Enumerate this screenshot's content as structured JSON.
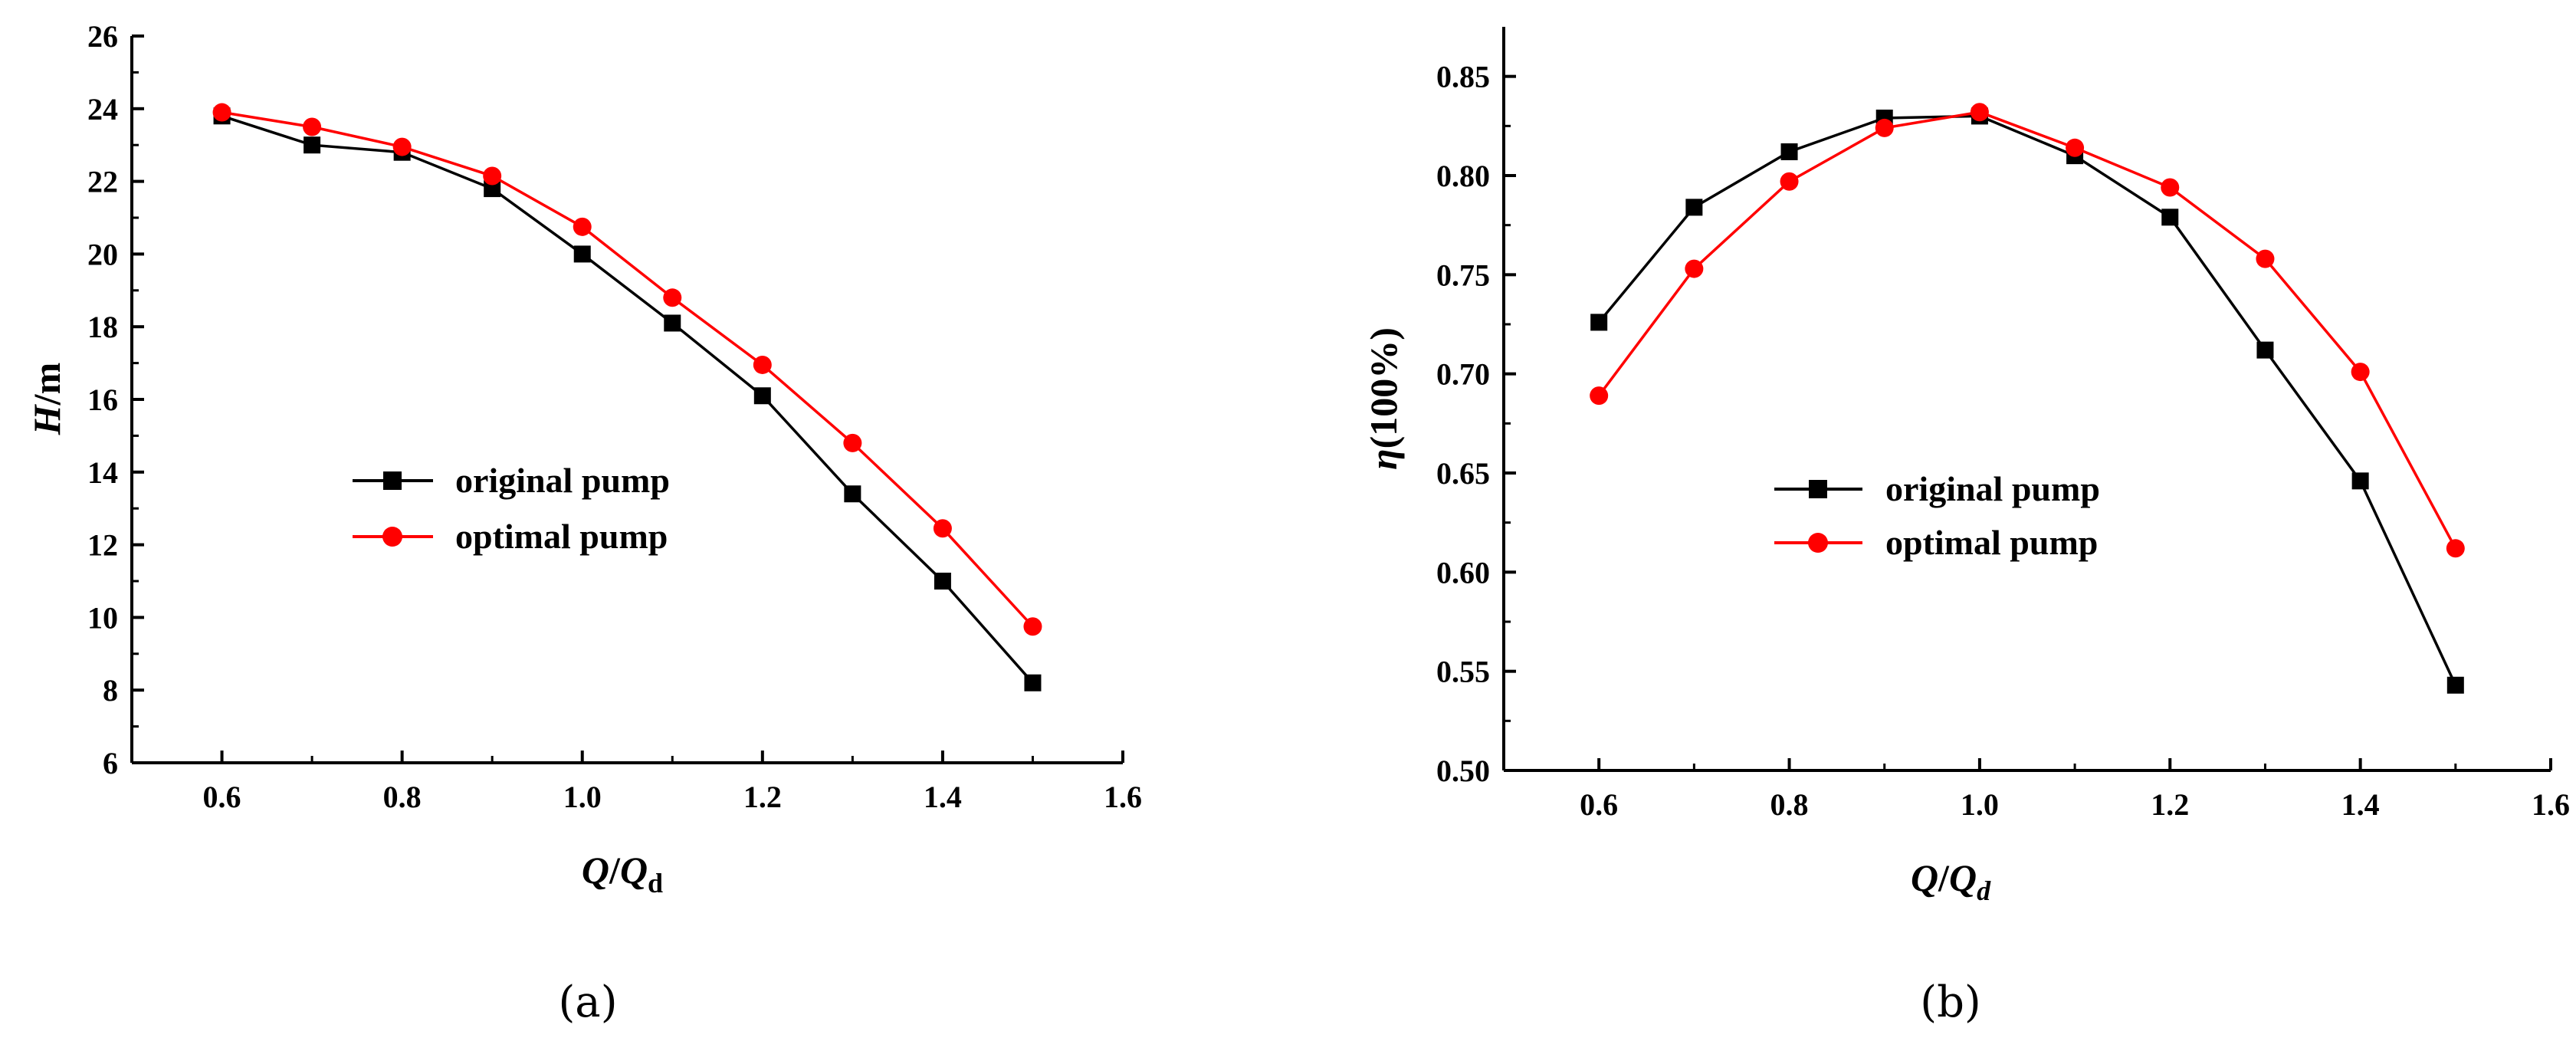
{
  "figure": {
    "panels": [
      "(a)",
      "(b)"
    ]
  },
  "chart_data": [
    {
      "type": "line",
      "panel_label": "(a)",
      "title": "",
      "xlabel": "Q/Qd",
      "xlabel_parts": {
        "q1": "Q",
        "slash": "/",
        "q2": "Q",
        "sub": "d"
      },
      "ylabel": "H/m",
      "ylabel_parts": {
        "var": "H",
        "unit": "/m"
      },
      "xlim": [
        0.5,
        1.6
      ],
      "ylim": [
        6,
        26
      ],
      "xticks": [
        0.6,
        0.8,
        1.0,
        1.2,
        1.4,
        1.6
      ],
      "xtick_labels": [
        "0.6",
        "0.8",
        "1.0",
        "1.2",
        "1.4",
        "1.6"
      ],
      "yticks": [
        6,
        8,
        10,
        12,
        14,
        16,
        18,
        20,
        22,
        24,
        26
      ],
      "ytick_labels": [
        "6",
        "8",
        "10",
        "12",
        "14",
        "16",
        "18",
        "20",
        "22",
        "24",
        "26"
      ],
      "grid": false,
      "legend_position": "center",
      "x": [
        0.6,
        0.7,
        0.8,
        0.9,
        1.0,
        1.1,
        1.2,
        1.3,
        1.4,
        1.5
      ],
      "series": [
        {
          "name": "original pump",
          "color": "#000000",
          "marker": "square",
          "values": [
            23.8,
            23.0,
            22.8,
            21.8,
            20.0,
            18.1,
            16.1,
            13.4,
            11.0,
            8.2
          ]
        },
        {
          "name": "optimal pump",
          "color": "#ff0000",
          "marker": "circle",
          "values": [
            23.9,
            23.5,
            22.95,
            22.15,
            20.75,
            18.8,
            16.95,
            14.8,
            12.45,
            9.75
          ]
        }
      ]
    },
    {
      "type": "line",
      "panel_label": "(b)",
      "title": "",
      "xlabel": "Q/Qd",
      "xlabel_parts": {
        "q1": "Q",
        "slash": "/",
        "q2": "Q",
        "sub": "d"
      },
      "ylabel": "η(100%)",
      "ylabel_parts": {
        "var": "η",
        "unit": "(100%)"
      },
      "xlim": [
        0.5,
        1.6
      ],
      "ylim": [
        0.5,
        0.875
      ],
      "xticks": [
        0.6,
        0.8,
        1.0,
        1.2,
        1.4,
        1.6
      ],
      "xtick_labels": [
        "0.6",
        "0.8",
        "1.0",
        "1.2",
        "1.4",
        "1.6"
      ],
      "yticks": [
        0.5,
        0.55,
        0.6,
        0.65,
        0.7,
        0.75,
        0.8,
        0.85
      ],
      "ytick_labels": [
        "0.50",
        "0.55",
        "0.60",
        "0.65",
        "0.70",
        "0.75",
        "0.80",
        "0.85"
      ],
      "grid": false,
      "legend_position": "center",
      "x": [
        0.6,
        0.7,
        0.8,
        0.9,
        1.0,
        1.1,
        1.2,
        1.3,
        1.4,
        1.5
      ],
      "series": [
        {
          "name": "original pump",
          "color": "#000000",
          "marker": "square",
          "values": [
            0.726,
            0.784,
            0.812,
            0.829,
            0.83,
            0.81,
            0.779,
            0.712,
            0.646,
            0.543
          ]
        },
        {
          "name": "optimal pump",
          "color": "#ff0000",
          "marker": "circle",
          "values": [
            0.689,
            0.753,
            0.797,
            0.824,
            0.832,
            0.814,
            0.794,
            0.758,
            0.701,
            0.612
          ]
        }
      ]
    }
  ]
}
